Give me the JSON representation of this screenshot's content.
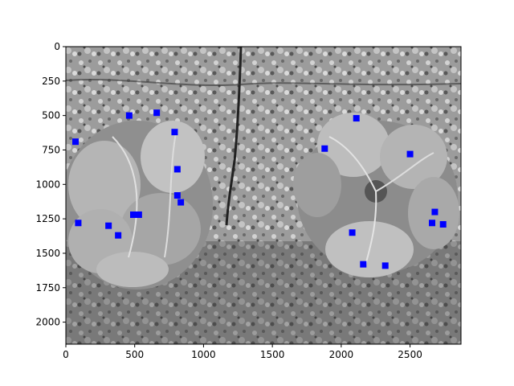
{
  "chart_data": {
    "type": "scatter",
    "background": "grayscale aerial photo of soil with two lettuce plants",
    "title": "",
    "xlabel": "",
    "ylabel": "",
    "xlim": [
      0,
      2870
    ],
    "ylim": [
      2160,
      0
    ],
    "y_axis_inverted": true,
    "grid": false,
    "legend": "none",
    "xticks": [
      0,
      500,
      1000,
      1500,
      2000,
      2500
    ],
    "yticks": [
      0,
      250,
      500,
      750,
      1000,
      1250,
      1500,
      1750,
      2000
    ],
    "marker": {
      "shape": "square",
      "color": "#0000ff"
    },
    "series": [
      {
        "points": [
          [
            460,
            500
          ],
          [
            660,
            480
          ],
          [
            790,
            620
          ],
          [
            70,
            690
          ],
          [
            810,
            890
          ],
          [
            810,
            1080
          ],
          [
            835,
            1130
          ],
          [
            490,
            1220
          ],
          [
            530,
            1220
          ],
          [
            90,
            1280
          ],
          [
            310,
            1300
          ],
          [
            380,
            1370
          ],
          [
            2110,
            520
          ],
          [
            1880,
            740
          ],
          [
            2500,
            780
          ],
          [
            2680,
            1200
          ],
          [
            2660,
            1280
          ],
          [
            2740,
            1290
          ],
          [
            2080,
            1350
          ],
          [
            2160,
            1580
          ],
          [
            2320,
            1590
          ]
        ]
      }
    ]
  },
  "colors": {
    "marker": "#0000ff",
    "axes": "#000000",
    "soil_light": "#c8c8c8",
    "soil_dark": "#3a3a3a",
    "lettuce": "#a9a9a9"
  }
}
